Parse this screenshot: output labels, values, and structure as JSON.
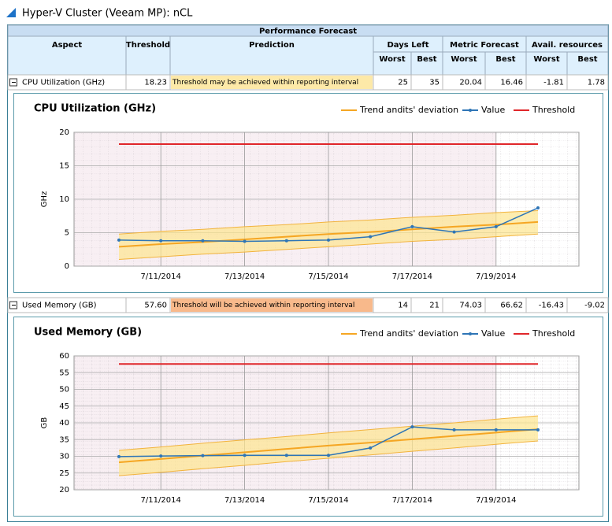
{
  "header": {
    "title": "Hyper-V Cluster (Veeam MP): nCL"
  },
  "table": {
    "title": "Performance Forecast",
    "columns": [
      "Aspect",
      "Threshold",
      "Prediction"
    ],
    "groups": [
      {
        "label": "Days Left",
        "sub": [
          "Worst",
          "Best"
        ]
      },
      {
        "label": "Metric Forecast",
        "sub": [
          "Worst",
          "Best"
        ]
      },
      {
        "label": "Avail. resources",
        "sub": [
          "Worst",
          "Best"
        ]
      }
    ],
    "rows": [
      {
        "aspect": "CPU Utilization (GHz)",
        "threshold": "18.23",
        "prediction": "Threshold may be achieved within reporting interval",
        "cells": [
          "25",
          "35",
          "20.04",
          "16.46",
          "-1.81",
          "1.78"
        ]
      },
      {
        "aspect": "Used Memory (GB)",
        "threshold": "57.60",
        "prediction": "Threshold will be achieved within reporting interval",
        "cells": [
          "14",
          "21",
          "74.03",
          "66.62",
          "-16.43",
          "-9.02"
        ]
      }
    ]
  },
  "chart_data": [
    {
      "type": "line",
      "title": "CPU Utilization (GHz)",
      "y_label": "GHz",
      "categories": [
        null,
        "7/11/2014",
        null,
        "7/13/2014",
        null,
        "7/15/2014",
        null,
        "7/17/2014",
        null,
        "7/19/2014",
        null
      ],
      "ylim": [
        0,
        20
      ],
      "yticks": [
        0,
        5,
        10,
        15,
        20
      ],
      "grid": true,
      "series": [
        {
          "name": "Trend andits' deviation",
          "color": "#f5a623",
          "values": [
            2.9,
            3.3,
            3.6,
            4.0,
            4.4,
            4.8,
            5.1,
            5.5,
            5.9,
            6.2,
            6.6
          ],
          "upper": [
            4.8,
            5.2,
            5.5,
            5.9,
            6.2,
            6.6,
            6.9,
            7.3,
            7.6,
            8.0,
            8.3
          ],
          "lower": [
            1.0,
            1.4,
            1.8,
            2.1,
            2.5,
            2.9,
            3.3,
            3.7,
            4.0,
            4.4,
            4.8
          ]
        },
        {
          "name": "Value",
          "color": "#2e75b6",
          "values": [
            3.9,
            3.8,
            3.8,
            3.7,
            3.8,
            3.9,
            4.4,
            5.9,
            5.1,
            5.9,
            8.7
          ]
        },
        {
          "name": "Threshold",
          "color": "#e0262a",
          "values": [
            18.23,
            18.23,
            18.23,
            18.23,
            18.23,
            18.23,
            18.23,
            18.23,
            18.23,
            18.23,
            18.23
          ]
        }
      ]
    },
    {
      "type": "line",
      "title": "Used Memory (GB)",
      "y_label": "GB",
      "categories": [
        null,
        "7/11/2014",
        null,
        "7/13/2014",
        null,
        "7/15/2014",
        null,
        "7/17/2014",
        null,
        "7/19/2014",
        null
      ],
      "ylim": [
        20,
        60
      ],
      "yticks": [
        20,
        25,
        30,
        35,
        40,
        45,
        50,
        55,
        60
      ],
      "grid": true,
      "series": [
        {
          "name": "Trend andits' deviation",
          "color": "#f5a623",
          "values": [
            28.2,
            29.2,
            30.2,
            31.2,
            32.2,
            33.2,
            34.1,
            35.1,
            36.1,
            37.1,
            38.1
          ],
          "upper": [
            31.8,
            32.8,
            33.9,
            34.9,
            35.9,
            37.0,
            38.0,
            39.0,
            40.0,
            41.1,
            42.1
          ],
          "lower": [
            24.2,
            25.2,
            26.3,
            27.3,
            28.4,
            29.4,
            30.4,
            31.5,
            32.5,
            33.6,
            34.6
          ]
        },
        {
          "name": "Value",
          "color": "#2e75b6",
          "values": [
            29.9,
            30.1,
            30.2,
            30.3,
            30.3,
            30.3,
            32.5,
            38.8,
            37.9,
            37.9,
            37.9
          ]
        },
        {
          "name": "Threshold",
          "color": "#e0262a",
          "values": [
            57.6,
            57.6,
            57.6,
            57.6,
            57.6,
            57.6,
            57.6,
            57.6,
            57.6,
            57.6,
            57.6
          ]
        }
      ]
    }
  ]
}
